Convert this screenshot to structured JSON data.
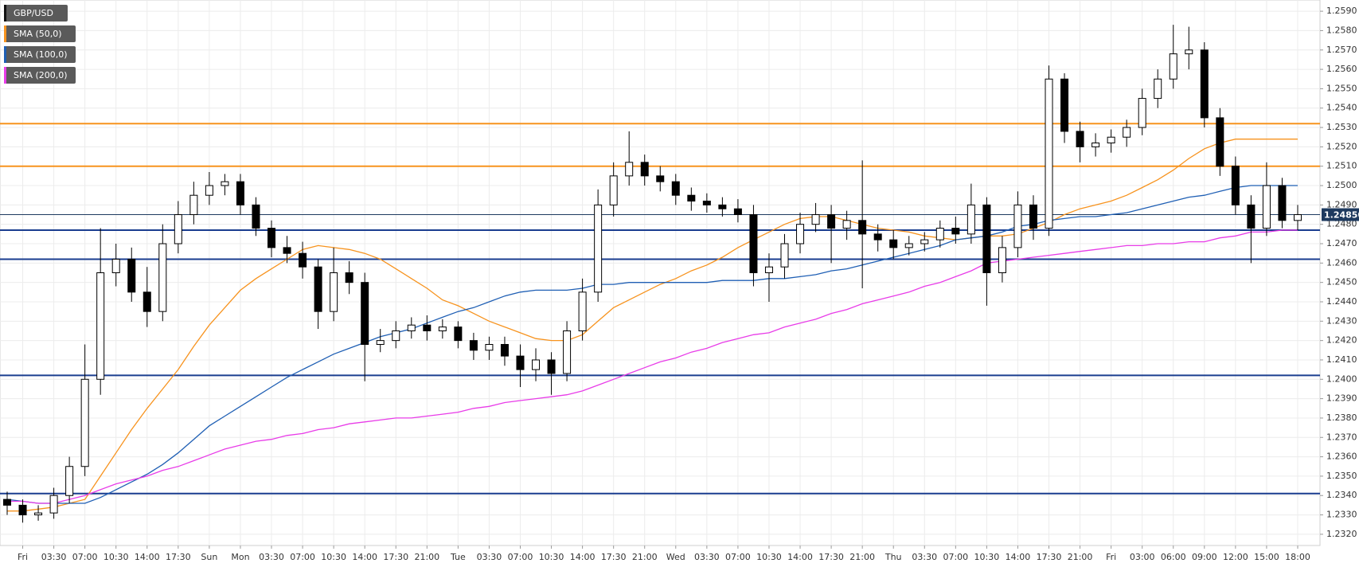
{
  "chart_data": {
    "type": "candlestick",
    "categories": [
      null,
      "Fri",
      null,
      "03:30",
      null,
      "07:00",
      null,
      "10:30",
      null,
      "14:00",
      null,
      "17:30",
      null,
      "Sun",
      null,
      "Mon",
      null,
      "03:30",
      null,
      "07:00",
      null,
      "10:30",
      null,
      "14:00",
      null,
      "17:30",
      null,
      "21:00",
      null,
      "Tue",
      null,
      "03:30",
      null,
      "07:00",
      null,
      "10:30",
      null,
      "14:00",
      null,
      "17:30",
      null,
      "21:00",
      null,
      "Wed",
      null,
      "03:30",
      null,
      "07:00",
      null,
      "10:30",
      null,
      "14:00",
      null,
      "17:30",
      null,
      "21:00",
      null,
      "Thu",
      null,
      "03:30",
      null,
      "07:00",
      null,
      "10:30",
      null,
      "14:00",
      null,
      "17:30",
      null,
      "21:00",
      null,
      "Fri",
      null,
      "03:00",
      null,
      "06:00",
      null,
      "09:00",
      null,
      "12:00",
      null,
      "15:00",
      null,
      "18:00"
    ],
    "ohlc": {
      "name": "GBP/USD",
      "color": "#000000",
      "up_color": "#ffffff",
      "down_color": "#000000",
      "open": [
        1.2338,
        1.2335,
        1.233,
        1.2331,
        1.234,
        1.2355,
        1.24,
        1.2455,
        1.2462,
        1.2445,
        1.2435,
        1.247,
        1.2485,
        1.2495,
        1.25,
        1.2502,
        1.249,
        1.2478,
        1.2468,
        1.2465,
        1.2458,
        1.2435,
        1.2455,
        1.245,
        1.2418,
        1.242,
        1.2425,
        1.2428,
        1.2425,
        1.2427,
        1.242,
        1.2415,
        1.2418,
        1.2412,
        1.2405,
        1.241,
        1.2403,
        1.2425,
        1.2445,
        1.249,
        1.2505,
        1.2512,
        1.2505,
        1.2502,
        1.2495,
        1.2492,
        1.249,
        1.2488,
        1.2485,
        1.2455,
        1.2458,
        1.247,
        1.248,
        1.2485,
        1.2478,
        1.2482,
        1.2475,
        1.2472,
        1.2468,
        1.247,
        1.2472,
        1.2478,
        1.2475,
        1.249,
        1.2455,
        1.2468,
        1.249,
        1.2478,
        1.2555,
        1.2528,
        1.252,
        1.2522,
        1.2525,
        1.253,
        1.2545,
        1.2555,
        1.2568,
        1.257,
        1.2535,
        1.251,
        1.249,
        1.2478,
        1.25,
        1.2482
      ],
      "high": [
        1.2342,
        1.2338,
        1.2335,
        1.2344,
        1.236,
        1.2418,
        1.2478,
        1.247,
        1.2468,
        1.2458,
        1.248,
        1.2492,
        1.2502,
        1.2507,
        1.2506,
        1.2506,
        1.2494,
        1.2482,
        1.2474,
        1.2471,
        1.2462,
        1.2468,
        1.2461,
        1.2455,
        1.2426,
        1.243,
        1.2432,
        1.2433,
        1.2431,
        1.243,
        1.2424,
        1.2422,
        1.2422,
        1.2418,
        1.2416,
        1.2414,
        1.243,
        1.2452,
        1.2498,
        1.2512,
        1.2528,
        1.2516,
        1.251,
        1.2506,
        1.2499,
        1.2496,
        1.2494,
        1.2493,
        1.249,
        1.2465,
        1.2475,
        1.2486,
        1.2491,
        1.249,
        1.2487,
        1.2513,
        1.248,
        1.2477,
        1.2474,
        1.2476,
        1.2482,
        1.2484,
        1.2501,
        1.2494,
        1.2474,
        1.2497,
        1.2495,
        1.2562,
        1.2558,
        1.2533,
        1.2527,
        1.2529,
        1.2534,
        1.255,
        1.256,
        1.2583,
        1.2582,
        1.2574,
        1.254,
        1.2515,
        1.2495,
        1.2512,
        1.2504,
        1.249
      ],
      "low": [
        1.233,
        1.2326,
        1.2327,
        1.2328,
        1.2336,
        1.235,
        1.2392,
        1.2448,
        1.244,
        1.2427,
        1.243,
        1.2465,
        1.248,
        1.249,
        1.2495,
        1.2485,
        1.2474,
        1.2463,
        1.246,
        1.2452,
        1.2426,
        1.243,
        1.2444,
        1.2399,
        1.2414,
        1.2416,
        1.2421,
        1.242,
        1.2421,
        1.2416,
        1.241,
        1.241,
        1.2407,
        1.2396,
        1.2399,
        1.2392,
        1.2399,
        1.242,
        1.244,
        1.2484,
        1.25,
        1.25,
        1.2497,
        1.249,
        1.2487,
        1.2486,
        1.2484,
        1.2481,
        1.2448,
        1.244,
        1.2452,
        1.2465,
        1.2476,
        1.246,
        1.2472,
        1.2447,
        1.2466,
        1.2462,
        1.2464,
        1.2466,
        1.2468,
        1.247,
        1.247,
        1.2438,
        1.245,
        1.2463,
        1.2472,
        1.2474,
        1.2522,
        1.2512,
        1.2515,
        1.2517,
        1.252,
        1.2526,
        1.254,
        1.255,
        1.256,
        1.253,
        1.2505,
        1.2485,
        1.246,
        1.2474,
        1.2478,
        1.2477
      ],
      "close": [
        1.2335,
        1.233,
        1.2331,
        1.234,
        1.2355,
        1.24,
        1.2455,
        1.2462,
        1.2445,
        1.2435,
        1.247,
        1.2485,
        1.2495,
        1.25,
        1.2502,
        1.249,
        1.2478,
        1.2468,
        1.2465,
        1.2458,
        1.2435,
        1.2455,
        1.245,
        1.2418,
        1.242,
        1.2425,
        1.2428,
        1.2425,
        1.2427,
        1.242,
        1.2415,
        1.2418,
        1.2412,
        1.2405,
        1.241,
        1.2403,
        1.2425,
        1.2445,
        1.249,
        1.2505,
        1.2512,
        1.2505,
        1.2502,
        1.2495,
        1.2492,
        1.249,
        1.2488,
        1.2485,
        1.2455,
        1.2458,
        1.247,
        1.248,
        1.2485,
        1.2478,
        1.2482,
        1.2475,
        1.2472,
        1.2468,
        1.247,
        1.2472,
        1.2478,
        1.2475,
        1.249,
        1.2455,
        1.2468,
        1.249,
        1.2478,
        1.2555,
        1.2528,
        1.252,
        1.2522,
        1.2525,
        1.253,
        1.2545,
        1.2555,
        1.2568,
        1.257,
        1.2535,
        1.251,
        1.249,
        1.2478,
        1.25,
        1.2482,
        1.2485
      ]
    },
    "series": [
      {
        "name": "SMA (50,0)",
        "color": "#f7931e",
        "values": [
          1.2332,
          1.2332,
          1.2333,
          1.2334,
          1.2336,
          1.2338,
          1.235,
          1.2362,
          1.2374,
          1.2385,
          1.2395,
          1.2405,
          1.2417,
          1.2428,
          1.2437,
          1.2446,
          1.2452,
          1.2457,
          1.2462,
          1.2467,
          1.2469,
          1.2468,
          1.2467,
          1.2465,
          1.2462,
          1.2457,
          1.2452,
          1.2447,
          1.2441,
          1.2438,
          1.2434,
          1.243,
          1.2427,
          1.2424,
          1.2421,
          1.242,
          1.242,
          1.2423,
          1.243,
          1.2437,
          1.2441,
          1.2445,
          1.2449,
          1.2452,
          1.2456,
          1.2459,
          1.2463,
          1.2468,
          1.2472,
          1.2476,
          1.248,
          1.2483,
          1.2484,
          1.2484,
          1.2482,
          1.248,
          1.2478,
          1.2477,
          1.2476,
          1.2474,
          1.2473,
          1.2472,
          1.2473,
          1.2474,
          1.2474,
          1.2475,
          1.2478,
          1.2481,
          1.2485,
          1.2488,
          1.249,
          1.2492,
          1.2495,
          1.2499,
          1.2503,
          1.2508,
          1.2514,
          1.2519,
          1.2522,
          1.2524,
          1.2524,
          1.2524,
          1.2524,
          1.2524
        ]
      },
      {
        "name": "SMA (100,0)",
        "color": "#1f5fb4",
        "values": [
          1.2338,
          1.2337,
          1.2336,
          1.2336,
          1.2336,
          1.2336,
          1.2339,
          1.2343,
          1.2347,
          1.2351,
          1.2356,
          1.2362,
          1.2369,
          1.2376,
          1.2381,
          1.2386,
          1.2391,
          1.2396,
          1.2401,
          1.2405,
          1.2409,
          1.2413,
          1.2416,
          1.2419,
          1.2422,
          1.2424,
          1.2426,
          1.2429,
          1.2432,
          1.2435,
          1.2437,
          1.244,
          1.2443,
          1.2445,
          1.2446,
          1.2446,
          1.2446,
          1.2447,
          1.2449,
          1.2449,
          1.245,
          1.245,
          1.245,
          1.245,
          1.245,
          1.245,
          1.2451,
          1.2451,
          1.2451,
          1.2452,
          1.2452,
          1.2453,
          1.2454,
          1.2456,
          1.2457,
          1.2459,
          1.2461,
          1.2463,
          1.2465,
          1.2467,
          1.2469,
          1.2472,
          1.2473,
          1.2474,
          1.2476,
          1.2479,
          1.248,
          1.2482,
          1.2483,
          1.2484,
          1.2484,
          1.2485,
          1.2486,
          1.2488,
          1.249,
          1.2492,
          1.2494,
          1.2495,
          1.2497,
          1.2499,
          1.25,
          1.25,
          1.25,
          1.25
        ]
      },
      {
        "name": "SMA (200,0)",
        "color": "#e83ce8",
        "values": [
          1.2337,
          1.2337,
          1.2336,
          1.2336,
          1.2338,
          1.234,
          1.2343,
          1.2346,
          1.2348,
          1.235,
          1.2353,
          1.2355,
          1.2358,
          1.2361,
          1.2364,
          1.2366,
          1.2368,
          1.2369,
          1.2371,
          1.2372,
          1.2374,
          1.2375,
          1.2377,
          1.2378,
          1.2379,
          1.238,
          1.238,
          1.2381,
          1.2382,
          1.2383,
          1.2385,
          1.2386,
          1.2388,
          1.2389,
          1.239,
          1.2391,
          1.2392,
          1.2394,
          1.2397,
          1.24,
          1.2403,
          1.2406,
          1.2409,
          1.2411,
          1.2414,
          1.2416,
          1.2419,
          1.2421,
          1.2423,
          1.2424,
          1.2427,
          1.2429,
          1.2431,
          1.2434,
          1.2436,
          1.2439,
          1.2441,
          1.2443,
          1.2445,
          1.2448,
          1.245,
          1.2453,
          1.2456,
          1.246,
          1.2461,
          1.2462,
          1.2463,
          1.2464,
          1.2465,
          1.2466,
          1.2467,
          1.2468,
          1.2469,
          1.2469,
          1.247,
          1.247,
          1.2471,
          1.2471,
          1.2473,
          1.2474,
          1.2476,
          1.2476,
          1.2477,
          1.2477
        ]
      }
    ],
    "levels": [
      {
        "value": 1.2532,
        "color": "#f7931e"
      },
      {
        "value": 1.251,
        "color": "#f7931e"
      },
      {
        "value": 1.2477,
        "color": "#1a3d8f"
      },
      {
        "value": 1.2462,
        "color": "#1a3d8f"
      },
      {
        "value": 1.2402,
        "color": "#1a3d8f"
      },
      {
        "value": 1.2341,
        "color": "#1a3d8f"
      }
    ],
    "price_line": {
      "value": 1.2485,
      "label": "1.24850",
      "color": "#1e3a5f"
    },
    "ylim": [
      1.23142,
      1.25958
    ],
    "yticks": [
      {
        "value": 1.232,
        "label": "1.2320"
      },
      {
        "value": 1.233,
        "label": "1.2330"
      },
      {
        "value": 1.234,
        "label": "1.2340"
      },
      {
        "value": 1.235,
        "label": "1.2350"
      },
      {
        "value": 1.236,
        "label": "1.2360"
      },
      {
        "value": 1.237,
        "label": "1.2370"
      },
      {
        "value": 1.238,
        "label": "1.2380"
      },
      {
        "value": 1.239,
        "label": "1.2390"
      },
      {
        "value": 1.24,
        "label": "1.2400"
      },
      {
        "value": 1.241,
        "label": "1.2410"
      },
      {
        "value": 1.242,
        "label": "1.2420"
      },
      {
        "value": 1.243,
        "label": "1.2430"
      },
      {
        "value": 1.244,
        "label": "1.2440"
      },
      {
        "value": 1.245,
        "label": "1.2450"
      },
      {
        "value": 1.246,
        "label": "1.2460"
      },
      {
        "value": 1.247,
        "label": "1.2470"
      },
      {
        "value": 1.248,
        "label": "1.2480"
      },
      {
        "value": 1.249,
        "label": "1.2490"
      },
      {
        "value": 1.25,
        "label": "1.2500"
      },
      {
        "value": 1.251,
        "label": "1.2510"
      },
      {
        "value": 1.252,
        "label": "1.2520"
      },
      {
        "value": 1.253,
        "label": "1.2530"
      },
      {
        "value": 1.254,
        "label": "1.2540"
      },
      {
        "value": 1.255,
        "label": "1.2550"
      },
      {
        "value": 1.256,
        "label": "1.2560"
      },
      {
        "value": 1.257,
        "label": "1.2570"
      },
      {
        "value": 1.258,
        "label": "1.2580"
      },
      {
        "value": 1.259,
        "label": "1.2590"
      }
    ],
    "grid": true,
    "legend": "top-left"
  }
}
